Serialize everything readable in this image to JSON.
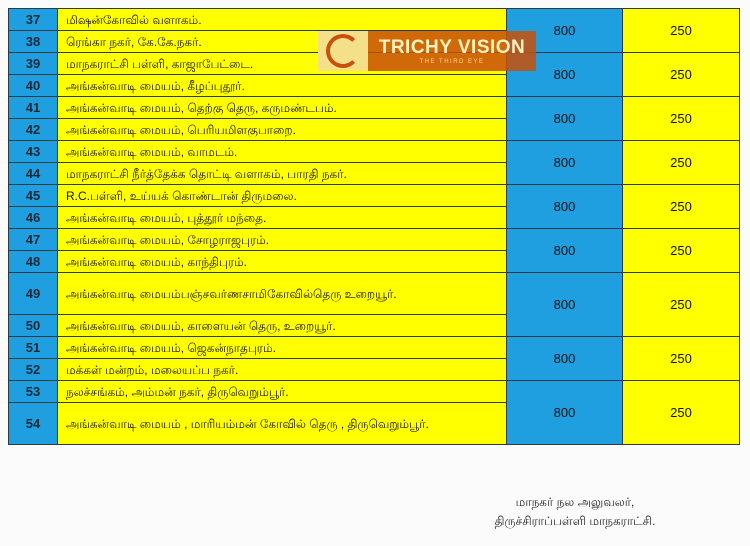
{
  "rows": [
    {
      "no": "37",
      "place": "மிஷன்கோவில் வளாகம்."
    },
    {
      "no": "38",
      "place": "ரெங்கா நகர், கே.கே.நகர்."
    },
    {
      "no": "39",
      "place": "மாநகராட்சி பள்ளி, காஜாபேட்டை."
    },
    {
      "no": "40",
      "place": "அங்கன்வாடி மையம், கீழப்புதூர்."
    },
    {
      "no": "41",
      "place": "அங்கன்வாடி மையம், தெற்கு தெரு, கருமண்டபம்."
    },
    {
      "no": "42",
      "place": "அங்கன்வாடி மையம், பெரியமிளகுபாறை."
    },
    {
      "no": "43",
      "place": "அங்கன்வாடி மையம், வாமடம்."
    },
    {
      "no": "44",
      "place": "மாநகராட்சி நீர்த்தேக்க தொட்டி வளாகம், பாரதி நகர்."
    },
    {
      "no": "45",
      "place": "R.C.பள்ளி, உய்யக் கொண்டான் திருமலை."
    },
    {
      "no": "46",
      "place": "அங்கன்வாடி மையம், புத்தூர் மந்தை."
    },
    {
      "no": "47",
      "place": "அங்கன்வாடி மையம், சோழராஜபுரம்."
    },
    {
      "no": "48",
      "place": "அங்கன்வாடி மையம், காந்திபுரம்."
    },
    {
      "no": "49",
      "place": "அங்கன்வாடி மையம்பஞ்சவர்ணசாமிகோவில்தெரு உறையூர்."
    },
    {
      "no": "50",
      "place": "அங்கன்வாடி மையம், காளையன் தெரு, உறையூர்."
    },
    {
      "no": "51",
      "place": "அங்கன்வாடி மையம், ஜெகன்நாதபுரம்."
    },
    {
      "no": "52",
      "place": "மக்கள் மன்றம், மலையப்ப நகர்."
    },
    {
      "no": "53",
      "place": "நலச்சங்கம், அம்மன் நகர், திருவெறும்பூர்."
    },
    {
      "no": "54",
      "place": "அங்கன்வாடி மையம் , மாரியம்மன் கோவில் தெரு , திருவெறும்பூர்."
    }
  ],
  "groups": [
    {
      "v1": "800",
      "v2": "250"
    },
    {
      "v1": "800",
      "v2": "250"
    },
    {
      "v1": "800",
      "v2": "250"
    },
    {
      "v1": "800",
      "v2": "250"
    },
    {
      "v1": "800",
      "v2": "250"
    },
    {
      "v1": "800",
      "v2": "250"
    },
    {
      "v1": "800",
      "v2": "250"
    },
    {
      "v1": "800",
      "v2": "250"
    },
    {
      "v1": "800",
      "v2": "250"
    }
  ],
  "watermark": {
    "title": "TRICHY VISION",
    "tagline": "THE THIRD EYE"
  },
  "signature": {
    "line1": "மாநகர் நல அலுவலர்,",
    "line2": "திருச்சிராப்பள்ளி மாநகராட்சி."
  },
  "colors": {
    "blue": "#1f9fdf",
    "yellow": "#ffff00"
  }
}
